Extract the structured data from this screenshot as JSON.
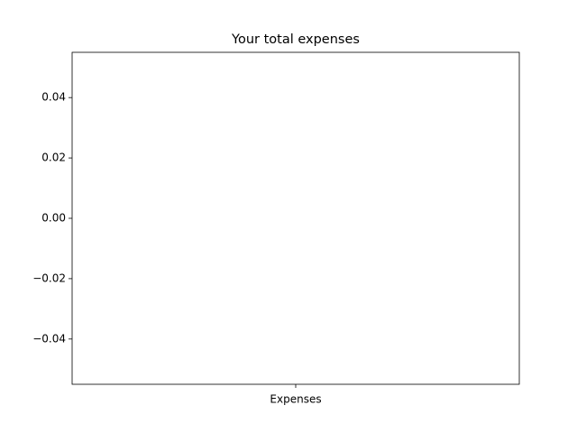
{
  "chart_data": {
    "type": "bar",
    "title": "Your total expenses",
    "categories": [
      "Expenses"
    ],
    "values": [
      0
    ],
    "color": "#1f77b4",
    "ylim": [
      -0.055,
      0.055
    ],
    "yticks": [
      {
        "value": -0.04,
        "label": "−0.04"
      },
      {
        "value": -0.02,
        "label": "−0.02"
      },
      {
        "value": 0,
        "label": "0.00"
      },
      {
        "value": 0.02,
        "label": "0.02"
      },
      {
        "value": 0.04,
        "label": "0.04"
      }
    ],
    "grid": false
  }
}
